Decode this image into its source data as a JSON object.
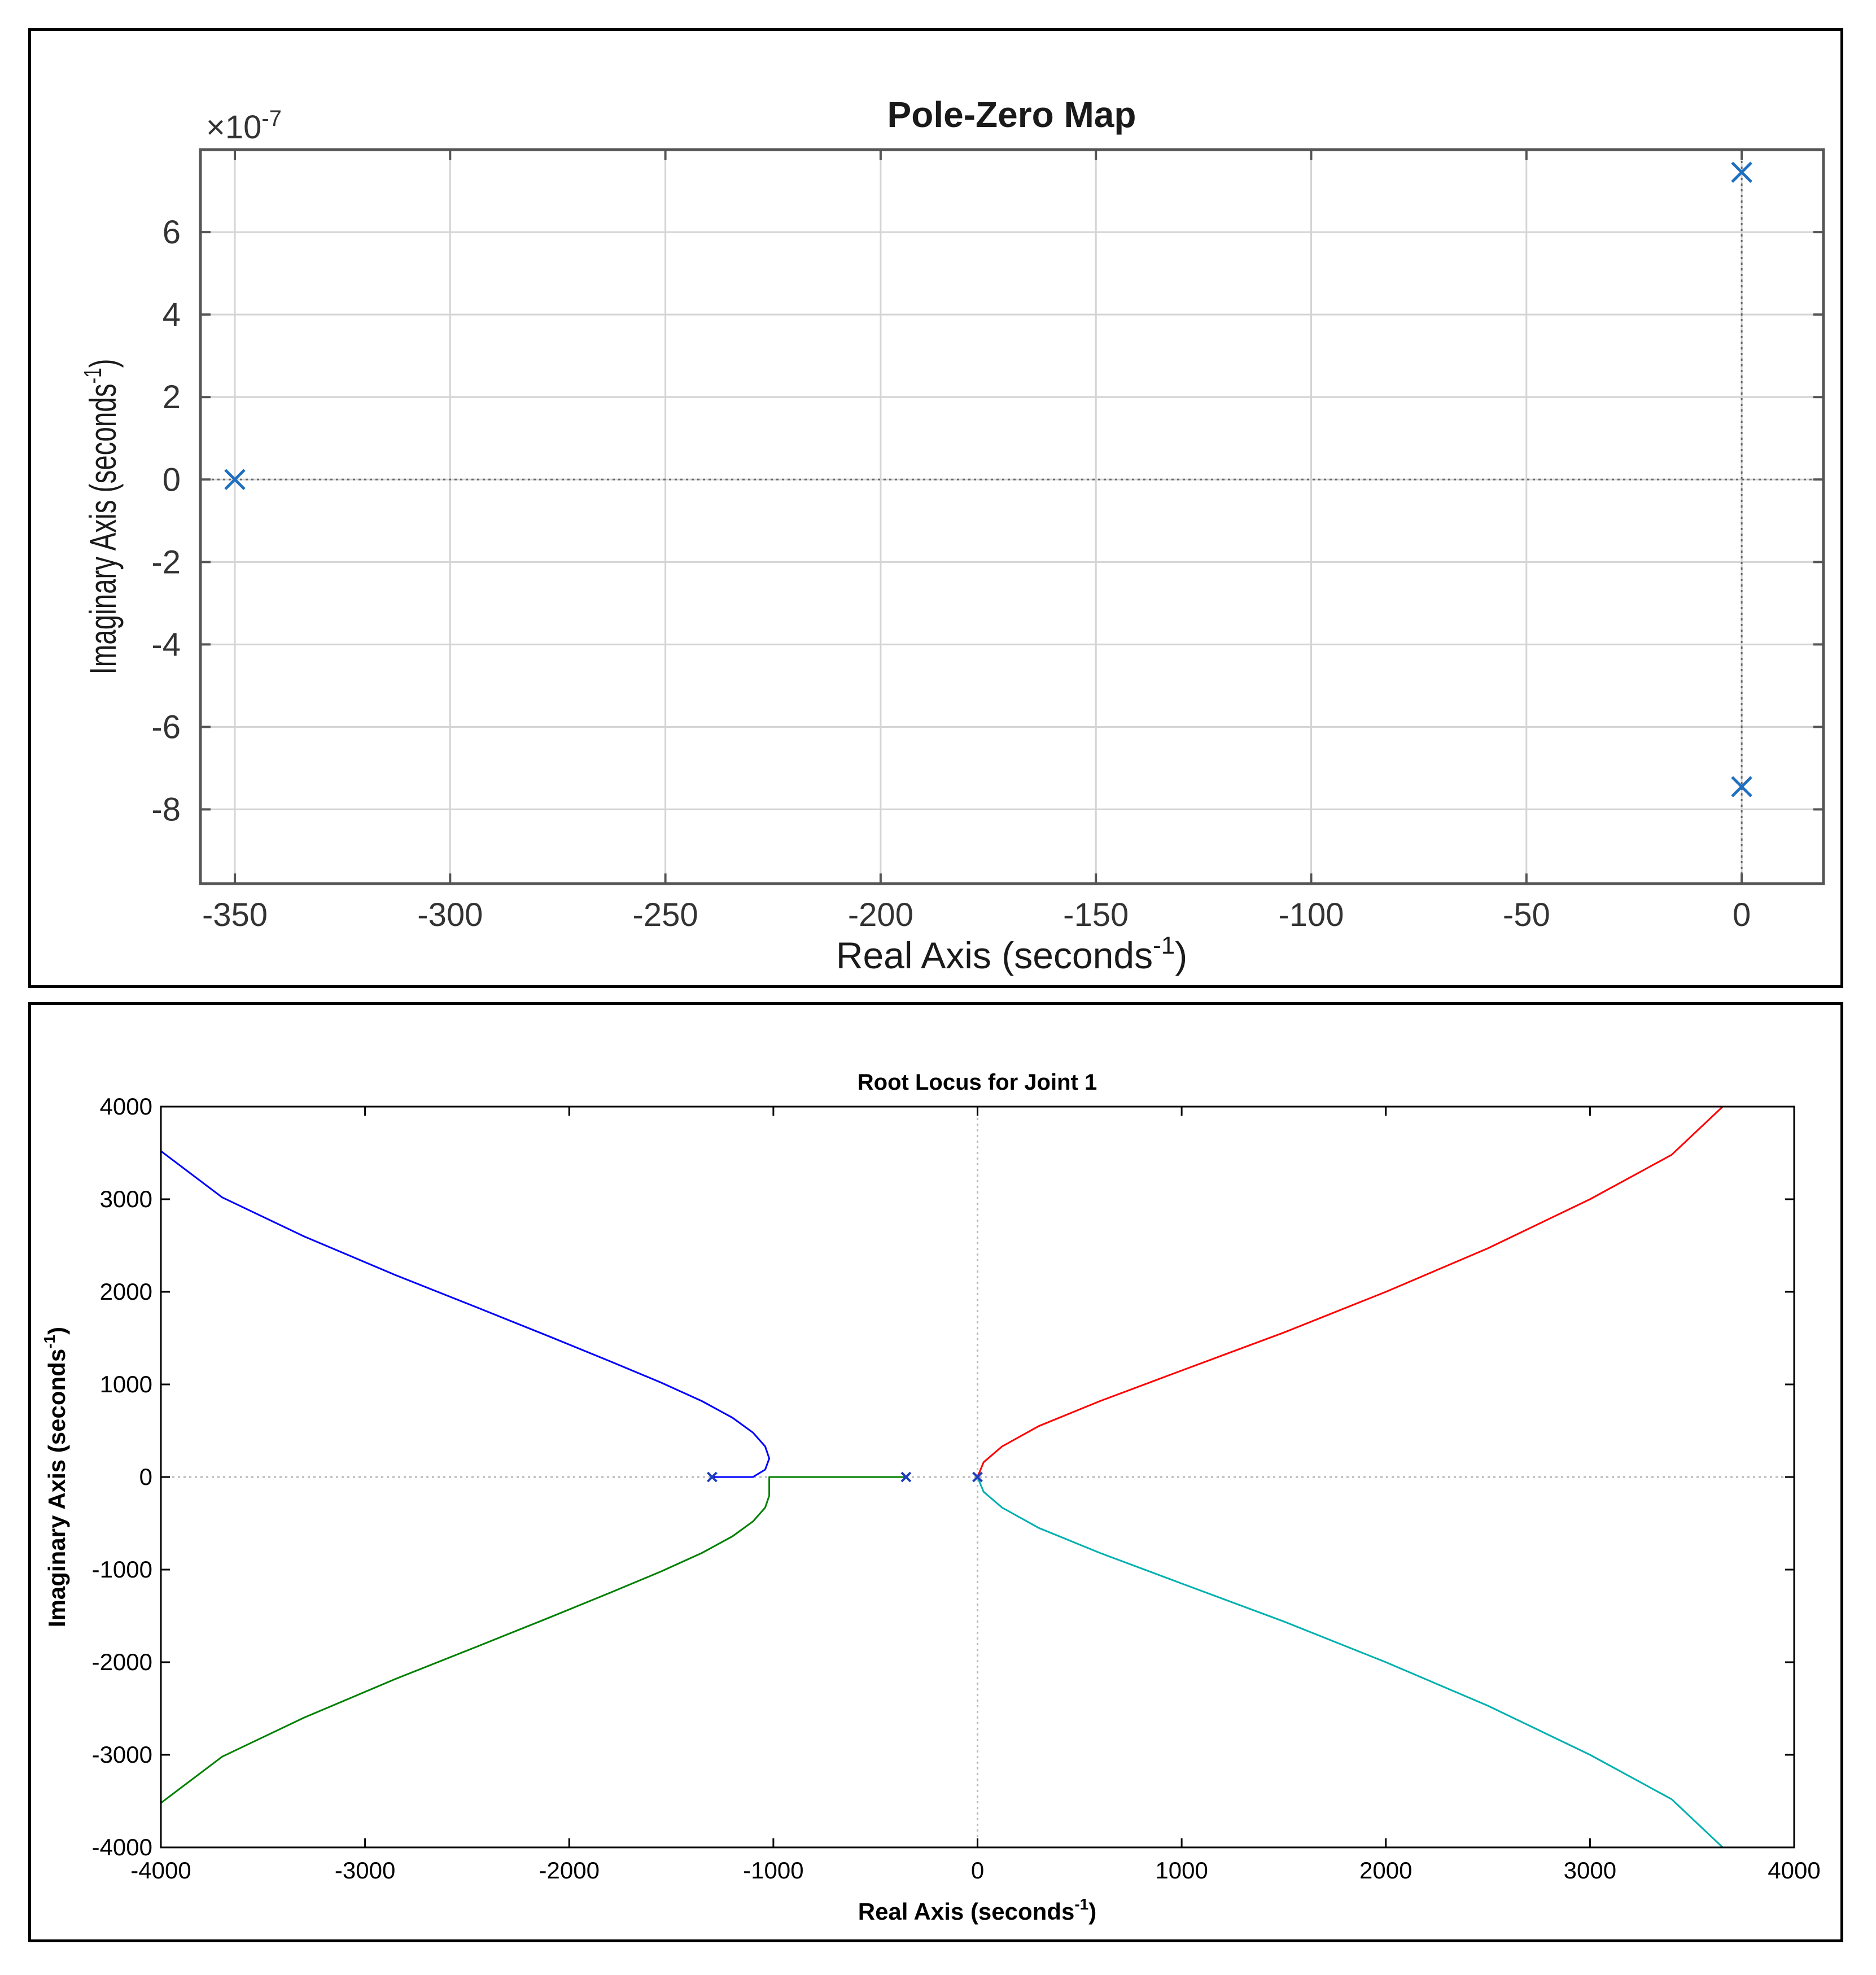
{
  "chart_data": [
    {
      "type": "scatter",
      "title": "Pole-Zero Map",
      "xlabel": "Real Axis (seconds",
      "xlabel_sup": "-1",
      "xlabel_close": ")",
      "ylabel": "Imaginary Axis (seconds",
      "ylabel_sup": "-1",
      "ylabel_close": ")",
      "y_multiplier": "×10",
      "y_multiplier_exp": "-7",
      "xlim": [
        -358,
        19
      ],
      "ylim": [
        -9.8,
        8.0
      ],
      "xticks": [
        -350,
        -300,
        -250,
        -200,
        -150,
        -100,
        -50,
        0
      ],
      "xtick_labels": [
        "-350",
        "-300",
        "-250",
        "-200",
        "-150",
        "-100",
        "-50",
        "0"
      ],
      "yticks": [
        -8,
        -6,
        -4,
        -2,
        0,
        2,
        4,
        6
      ],
      "ytick_labels": [
        "-8",
        "-6",
        "-4",
        "-2",
        "0",
        "2",
        "4",
        "6"
      ],
      "grid": true,
      "marker": "x",
      "marker_color": "#1f6fc0",
      "poles": [
        {
          "x": -350,
          "y": 0
        },
        {
          "x": 0,
          "y": 7.45
        },
        {
          "x": 0,
          "y": -7.45
        }
      ]
    },
    {
      "type": "line",
      "title": "Root Locus for Joint 1",
      "xlabel": "Real Axis (seconds",
      "xlabel_sup": "-1",
      "xlabel_close": ")",
      "ylabel": "Imaginary Axis (seconds",
      "ylabel_sup": "-1",
      "ylabel_close": ")",
      "xlim": [
        -4000,
        4000
      ],
      "ylim": [
        -4000,
        4000
      ],
      "xticks": [
        -4000,
        -3000,
        -2000,
        -1000,
        0,
        1000,
        2000,
        3000,
        4000
      ],
      "xtick_labels": [
        "-4000",
        "-3000",
        "-2000",
        "-1000",
        "0",
        "1000",
        "2000",
        "3000",
        "4000"
      ],
      "yticks": [
        -4000,
        -3000,
        -2000,
        -1000,
        0,
        1000,
        2000,
        3000,
        4000
      ],
      "ytick_labels": [
        "-4000",
        "-3000",
        "-2000",
        "-1000",
        "0",
        "1000",
        "2000",
        "3000",
        "4000"
      ],
      "grid": false,
      "poles": [
        {
          "x": -1300,
          "y": 0
        },
        {
          "x": -350,
          "y": 0
        },
        {
          "x": 0,
          "y": 0
        }
      ],
      "series": [
        {
          "color": "#0000ff",
          "x": [
            -1300,
            -1100,
            -1040,
            -1020,
            -1040,
            -1100,
            -1200,
            -1350,
            -1550,
            -1800,
            -2100,
            -2450,
            -2850,
            -3300,
            -3700,
            -4000
          ],
          "y": [
            0,
            0,
            80,
            200,
            330,
            480,
            640,
            820,
            1020,
            1250,
            1520,
            1830,
            2180,
            2600,
            3020,
            3520
          ]
        },
        {
          "color": "#008000",
          "x": [
            -350,
            -600,
            -900,
            -1020,
            -1020,
            -1040,
            -1100,
            -1200,
            -1350,
            -1550,
            -1800,
            -2100,
            -2450,
            -2850,
            -3300,
            -3700,
            -4000
          ],
          "y": [
            0,
            0,
            0,
            0,
            -200,
            -330,
            -480,
            -640,
            -820,
            -1020,
            -1250,
            -1520,
            -1830,
            -2180,
            -2600,
            -3020,
            -3520
          ]
        },
        {
          "color": "#ff0000",
          "x": [
            0,
            30,
            120,
            300,
            600,
            1000,
            1500,
            2000,
            2500,
            3000,
            3400,
            3650
          ],
          "y": [
            0,
            160,
            330,
            550,
            820,
            1150,
            1560,
            2000,
            2470,
            3000,
            3480,
            4000
          ]
        },
        {
          "color": "#00b0b0",
          "x": [
            0,
            30,
            120,
            300,
            600,
            1000,
            1500,
            2000,
            2500,
            3000,
            3400,
            3650
          ],
          "y": [
            0,
            -160,
            -330,
            -550,
            -820,
            -1150,
            -1560,
            -2000,
            -2470,
            -3000,
            -3480,
            -4000
          ]
        }
      ]
    }
  ]
}
